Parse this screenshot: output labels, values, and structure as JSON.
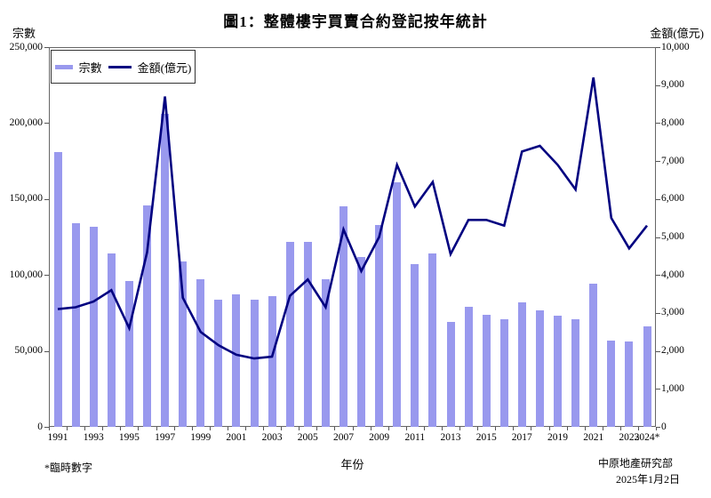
{
  "title": "圖1：整體樓宇買賣合約登記按年統計",
  "left_axis": {
    "title": "宗數",
    "tick_values": [
      0,
      50000,
      100000,
      150000,
      200000,
      250000
    ],
    "tick_labels": [
      "0",
      "50,000",
      "100,000",
      "150,000",
      "200,000",
      "250,000"
    ]
  },
  "right_axis": {
    "title": "金額(億元)",
    "tick_values": [
      0,
      1000,
      2000,
      3000,
      4000,
      5000,
      6000,
      7000,
      8000,
      9000,
      10000
    ],
    "tick_labels": [
      "0",
      "1,000",
      "2,000",
      "3,000",
      "4,000",
      "5,000",
      "6,000",
      "7,000",
      "8,000",
      "9,000",
      "10,000"
    ]
  },
  "x_axis": {
    "title": "年份",
    "tick_labels": [
      "1991",
      "1993",
      "1995",
      "1997",
      "1999",
      "2001",
      "2003",
      "2005",
      "2007",
      "2009",
      "2011",
      "2013",
      "2015",
      "2017",
      "2019",
      "2021",
      "2023",
      "2024*"
    ]
  },
  "legend": [
    {
      "label": "宗數",
      "type": "bar",
      "color": "#9999EE"
    },
    {
      "label": "金額(億元)",
      "type": "line",
      "color": "#000080"
    }
  ],
  "footnote": "*臨時數字",
  "source": "中原地產研究部",
  "date": "2025年1月2日",
  "colors": {
    "bar_fill": "#9999EE",
    "line_stroke": "#000080",
    "axis": "#666666"
  },
  "chart_data": {
    "type": "bar+line combo, dual axis",
    "title": "圖1：整體樓宇買賣合約登記按年統計",
    "xlabel": "年份",
    "categories": [
      1991,
      1992,
      1993,
      1994,
      1995,
      1996,
      1997,
      1998,
      1999,
      2000,
      2001,
      2002,
      2003,
      2004,
      2005,
      2006,
      2007,
      2008,
      2009,
      2010,
      2011,
      2012,
      2013,
      2014,
      2015,
      2016,
      2017,
      2018,
      2019,
      2020,
      2021,
      2022,
      2023,
      2024
    ],
    "series": [
      {
        "name": "宗數",
        "type": "bar",
        "axis": "left",
        "color": "#9999EE",
        "values": [
          181000,
          134000,
          132000,
          114000,
          96000,
          146000,
          206000,
          109000,
          97000,
          84000,
          87000,
          84000,
          86000,
          122000,
          122000,
          97000,
          145000,
          112000,
          133000,
          161000,
          107000,
          114000,
          69000,
          79000,
          74000,
          71000,
          82000,
          77000,
          73000,
          71000,
          94000,
          57000,
          56000,
          66000
        ]
      },
      {
        "name": "金額(億元)",
        "type": "line",
        "axis": "right",
        "color": "#000080",
        "values": [
          3100,
          3150,
          3300,
          3600,
          2600,
          4600,
          8700,
          3400,
          2500,
          2150,
          1900,
          1800,
          1850,
          3450,
          3880,
          3150,
          5200,
          4100,
          5000,
          6900,
          5800,
          6450,
          4550,
          5450,
          5450,
          5300,
          7250,
          7400,
          6900,
          6250,
          9200,
          5500,
          4700,
          5300
        ]
      }
    ],
    "left_ylim": [
      0,
      250000
    ],
    "right_ylim": [
      0,
      10000
    ],
    "grid": "none",
    "legend_position": "top-left inside plot",
    "notes": "2024 figures provisional (*臨時數字)"
  }
}
